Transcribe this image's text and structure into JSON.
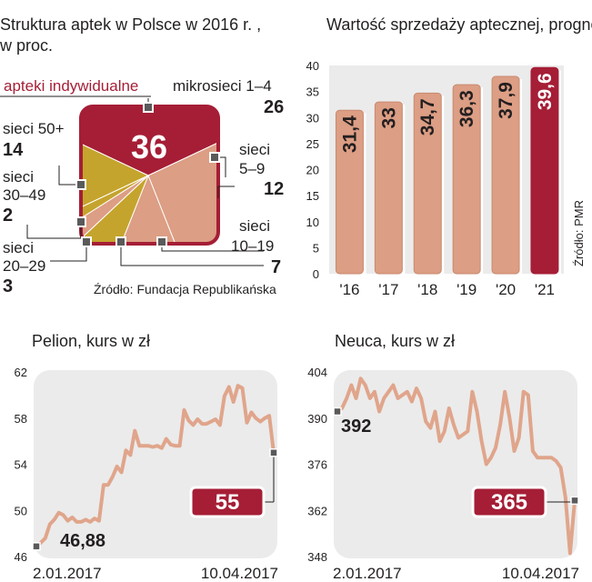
{
  "colors": {
    "red": "#a51e36",
    "salmon": "#dc9e84",
    "salmon_stroke": "#e0a58b",
    "olive": "#c5a42d",
    "panel": "#ebebeb",
    "text": "#231f20",
    "white": "#ffffff"
  },
  "pie": {
    "title": "Struktura aptek w Polsce w 2016 r. ,",
    "subtitle": "w proc.",
    "source": "Źródło: Fundacja Republikańska",
    "center_value": "36",
    "labels": {
      "indywidualne": "apteki indywidualne",
      "mikro_name": "mikrosieci 1–4",
      "mikro_value": "26",
      "s59_a": "sieci",
      "s59_b": "5–9",
      "s59_value": "12",
      "s1019_a": "sieci",
      "s1019_b": "10–19",
      "s1019_value": "7",
      "s50_name": "sieci 50+",
      "s50_value": "14",
      "s3049_a": "sieci",
      "s3049_b": "30–49",
      "s3049_value": "2",
      "s2029_a": "sieci",
      "s2029_b": "20–29",
      "s2029_value": "3"
    }
  },
  "chart_data": [
    {
      "type": "pie",
      "title": "Struktura aptek w Polsce w 2016 r. , w proc.",
      "slices": [
        {
          "label": "apteki indywidualne",
          "value": 36,
          "color": "#a51e36"
        },
        {
          "label": "mikrosieci 1–4",
          "value": 26,
          "color": "#dc9e84"
        },
        {
          "label": "sieci 5–9",
          "value": 12,
          "color": "#dc9e84"
        },
        {
          "label": "sieci 10–19",
          "value": 7,
          "color": "#c5a42d"
        },
        {
          "label": "sieci 20–29",
          "value": 3,
          "color": "#dc9e84"
        },
        {
          "label": "sieci 30–49",
          "value": 2,
          "color": "#c5a42d"
        },
        {
          "label": "sieci 50+",
          "value": 14,
          "color": "#c5a42d"
        }
      ],
      "source": "Źródło: Fundacja Republikańska"
    },
    {
      "type": "bar",
      "title": "Wartość sprzedaży aptecznej, prognozy w mld zł",
      "categories": [
        "'16",
        "'17",
        "'18",
        "'19",
        "'20",
        "'21"
      ],
      "values": [
        31.4,
        33,
        34.7,
        36.3,
        37.9,
        39.6
      ],
      "value_labels": [
        "31,4",
        "33",
        "34,7",
        "36,3",
        "37,9",
        "39,6"
      ],
      "yticks": [
        "0",
        "5",
        "10",
        "15",
        "20",
        "25",
        "30",
        "35",
        "40"
      ],
      "ylim": [
        0,
        40
      ],
      "highlight_index": 5,
      "source": "Źródło: PMR"
    },
    {
      "type": "line",
      "title": "Pelion, kurs w zł",
      "ylim": [
        46,
        62
      ],
      "yticks": [
        "46",
        "50",
        "54",
        "58",
        "62"
      ],
      "x_labels": [
        "2.01.2017",
        "10.04.2017"
      ],
      "start_label": "46,88",
      "end_label": "55",
      "values": [
        46.88,
        47.2,
        47.6,
        48.8,
        49.2,
        49.8,
        49.6,
        49.1,
        49.4,
        49.0,
        49.0,
        49.2,
        49.0,
        49.3,
        49.1,
        52.2,
        52.2,
        52.9,
        53.8,
        53.3,
        55.2,
        54.8,
        56.9,
        55.6,
        55.6,
        55.6,
        55.5,
        55.6,
        55.4,
        56.2,
        55.7,
        55.6,
        55.6,
        58.7,
        57.8,
        57.4,
        57.9,
        57.5,
        57.5,
        57.7,
        57.9,
        57.4,
        59.9,
        60.7,
        59.4,
        60.8,
        60.6,
        57.6,
        58.5,
        58.0,
        57.7,
        58.0,
        58.2,
        55.0
      ]
    },
    {
      "type": "line",
      "title": "Neuca, kurs w zł",
      "ylim": [
        348,
        404
      ],
      "yticks": [
        "348",
        "362",
        "376",
        "390",
        "404"
      ],
      "x_labels": [
        "2.01.2017",
        "10.04.2017"
      ],
      "start_label": "392",
      "end_label": "365",
      "values": [
        392,
        393,
        396,
        400,
        396,
        402,
        400,
        396,
        398,
        392,
        396,
        398,
        400,
        396,
        397,
        398,
        395,
        399,
        396,
        389,
        387,
        392,
        383,
        386,
        393,
        388,
        384,
        385,
        386,
        398,
        392,
        383,
        376,
        378,
        381,
        388,
        398,
        390,
        380,
        384,
        398,
        397,
        380,
        378,
        378,
        378,
        378,
        377,
        375,
        366,
        349,
        365
      ]
    }
  ]
}
